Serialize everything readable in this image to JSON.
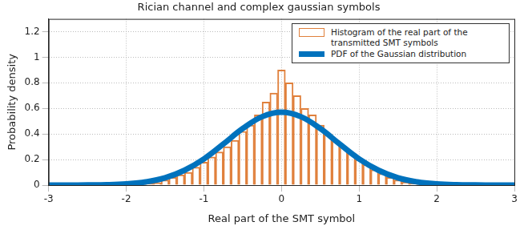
{
  "chart_data": {
    "type": "histogram",
    "title": "Rician channel and complex gaussian symbols",
    "x_label": "Real part of the SMT symbol",
    "y_label": "Probability density",
    "xlim": [
      -3,
      3
    ],
    "xticks": [
      -3,
      -2,
      -1,
      0,
      1,
      2,
      3
    ],
    "ylim": [
      0,
      1.3
    ],
    "yticks": [
      0,
      0.2,
      0.4,
      0.6,
      0.8,
      1,
      1.2
    ],
    "grid": true,
    "legend": "upper right",
    "series": [
      {
        "name": "Histogram of the real part of the transmitted SMT symbols",
        "type": "histogram",
        "color": "#e0803c",
        "bins": [
          -1.85,
          -1.75,
          -1.65,
          -1.55,
          -1.45,
          -1.35,
          -1.25,
          -1.15,
          -1.05,
          -0.95,
          -0.85,
          -0.75,
          -0.65,
          -0.55,
          -0.45,
          -0.35,
          -0.25,
          -0.15,
          -0.05,
          0.05,
          0.15,
          0.25,
          0.35,
          0.45,
          0.55,
          0.65,
          0.75,
          0.85,
          0.95,
          1.05,
          1.15,
          1.25,
          1.35,
          1.45,
          1.55,
          1.65,
          1.75,
          1.85
        ],
        "values": [
          0.005,
          0.01,
          0.02,
          0.04,
          0.06,
          0.08,
          0.1,
          0.14,
          0.18,
          0.22,
          0.26,
          0.3,
          0.35,
          0.42,
          0.47,
          0.55,
          0.65,
          0.72,
          0.9,
          0.8,
          0.7,
          0.6,
          0.55,
          0.47,
          0.4,
          0.35,
          0.3,
          0.25,
          0.2,
          0.16,
          0.12,
          0.09,
          0.06,
          0.04,
          0.025,
          0.012,
          0.005
        ]
      },
      {
        "name": "PDF of the Gaussian distribution",
        "type": "line",
        "color": "#0072bd",
        "x": [
          -3,
          -2.75,
          -2.5,
          -2.25,
          -2,
          -1.75,
          -1.5,
          -1.25,
          -1,
          -0.75,
          -0.5,
          -0.25,
          0,
          0.25,
          0.5,
          0.75,
          1,
          1.25,
          1.5,
          1.75,
          2,
          2.25,
          2.5,
          2.75,
          3
        ],
        "values": [
          0,
          0,
          0.001,
          0.003,
          0.0096,
          0.025,
          0.057,
          0.116,
          0.205,
          0.321,
          0.442,
          0.535,
          0.57,
          0.535,
          0.442,
          0.321,
          0.205,
          0.116,
          0.057,
          0.025,
          0.0096,
          0.003,
          0.001,
          0,
          0
        ]
      }
    ]
  }
}
